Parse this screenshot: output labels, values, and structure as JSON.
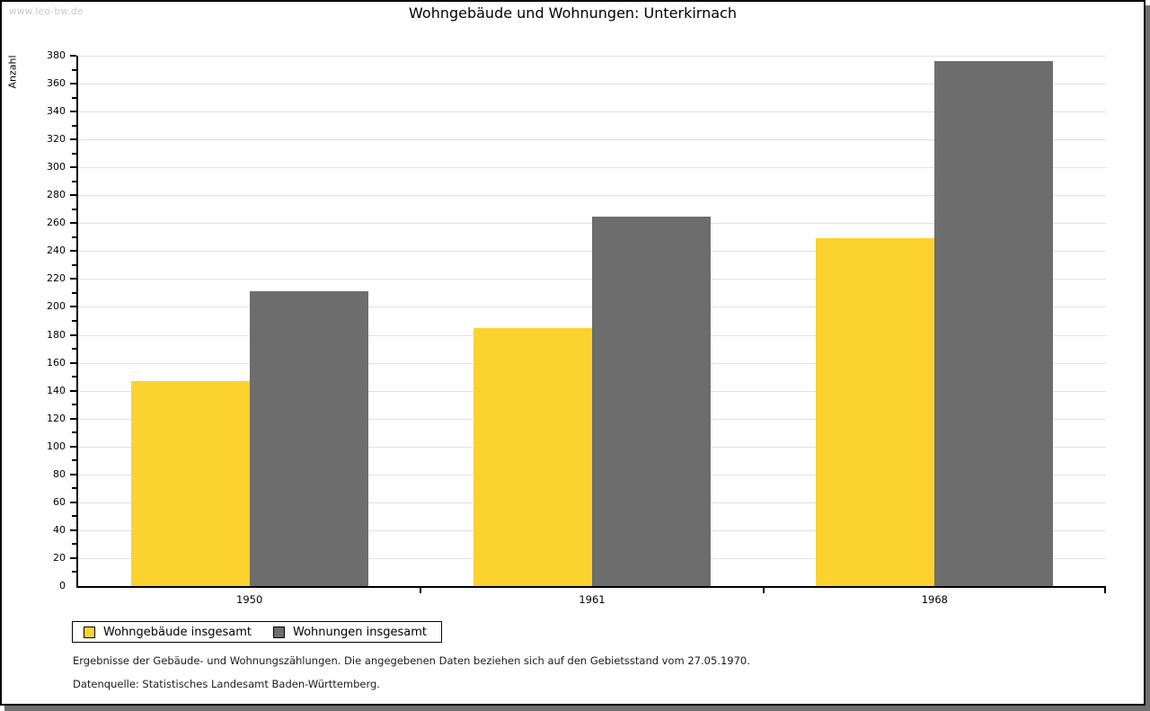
{
  "page": {
    "watermark": "www.leo-bw.de"
  },
  "chart_data": {
    "type": "bar",
    "title": "Wohngebäude und Wohnungen: Unterkirnach",
    "ylabel": "Anzahl",
    "xlabel": "",
    "categories": [
      "1950",
      "1961",
      "1968"
    ],
    "series": [
      {
        "name": "Wohngebäude insgesamt",
        "color": "#fcd22f",
        "values": [
          147,
          185,
          249
        ]
      },
      {
        "name": "Wohnungen insgesamt",
        "color": "#6d6d6d",
        "values": [
          211,
          265,
          376
        ]
      }
    ],
    "ylim": [
      0,
      380
    ],
    "ytick_step": 20,
    "minor_tick_step": 10,
    "grid": true,
    "legend_position": "bottom-left"
  },
  "footer": {
    "line1": "Ergebnisse der Gebäude- und Wohnungszählungen. Die angegebenen Daten beziehen sich auf den Gebietsstand vom 27.05.1970.",
    "line2": "Datenquelle: Statistisches Landesamt Baden-Württemberg."
  },
  "colors": {
    "bar_yellow": "#fcd22f",
    "bar_gray": "#6d6d6d",
    "gridline": "#e2e2e2",
    "axis": "#000000",
    "watermark": "#c9c9c9",
    "shadow": "#6f6f6f",
    "background": "#ffffff"
  }
}
